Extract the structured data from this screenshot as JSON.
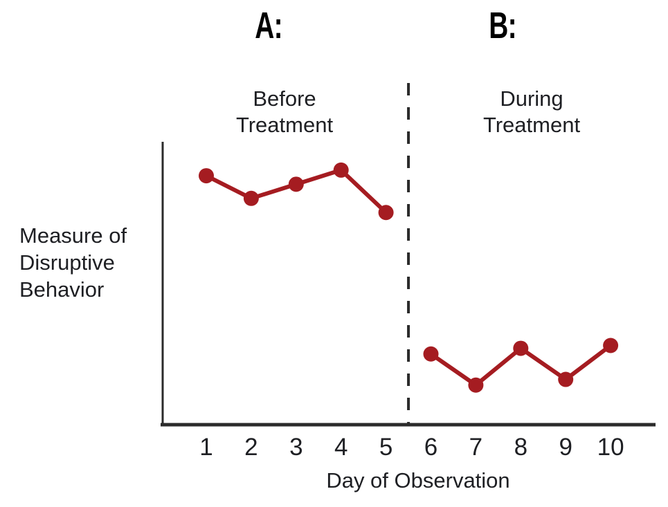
{
  "figure": {
    "phase_a_heading": "A:",
    "phase_b_heading": "B:"
  },
  "chart_data": {
    "type": "line",
    "title": "",
    "xlabel": "Day of Observation",
    "ylabel": "Measure of Disruptive Behavior",
    "ylabel_lines": [
      "Measure of",
      "Disruptive",
      "Behavior"
    ],
    "x_ticks": [
      "1",
      "2",
      "3",
      "4",
      "5",
      "6",
      "7",
      "8",
      "9",
      "10"
    ],
    "x_range": [
      1,
      10
    ],
    "ylim": [
      0,
      10
    ],
    "grid": false,
    "legend": "none",
    "marker": "circle",
    "phase_divider_x": 5.5,
    "series": [
      {
        "name": "A: Before Treatment",
        "x": [
          1,
          2,
          3,
          4,
          5
        ],
        "values": [
          8.8,
          8.0,
          8.5,
          9.0,
          7.5
        ]
      },
      {
        "name": "B: During Treatment",
        "x": [
          6,
          7,
          8,
          9,
          10
        ],
        "values": [
          2.5,
          1.4,
          2.7,
          1.6,
          2.8
        ]
      }
    ],
    "annotations": [
      {
        "phase": "A",
        "line1": "Before",
        "line2": "Treatment"
      },
      {
        "phase": "B",
        "line1": "During",
        "line2": "Treatment"
      }
    ],
    "colors": {
      "line": "#a51c21",
      "marker": "#a51c21",
      "axis": "#2b2b2b",
      "divider": "#2b2b2b",
      "text": "#1e1f23",
      "heading": "#000000",
      "background": "#ffffff"
    }
  }
}
